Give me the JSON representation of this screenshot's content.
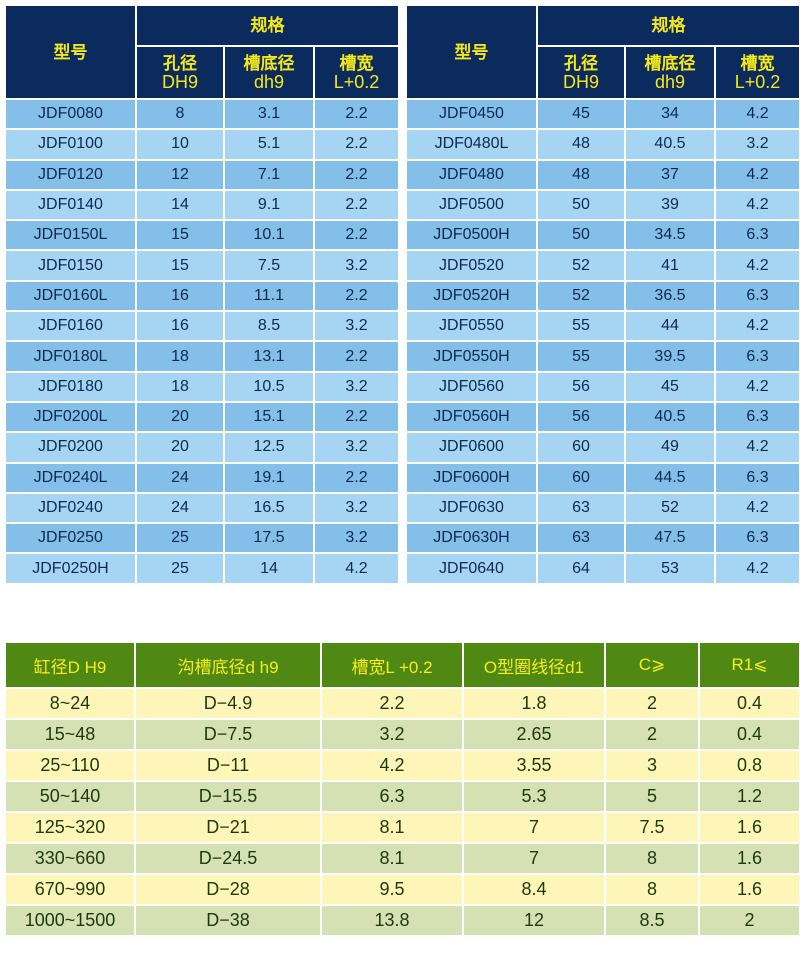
{
  "spec_header": {
    "model": "型号",
    "spec": "规格",
    "bore_cn": "孔径",
    "bore_en": "DH9",
    "groove_dia_cn": "槽底径",
    "groove_dia_en": "dh9",
    "groove_width_cn": "槽宽",
    "groove_width_en": "L+0.2"
  },
  "left_rows": [
    [
      "JDF0080",
      "8",
      "3.1",
      "2.2"
    ],
    [
      "JDF0100",
      "10",
      "5.1",
      "2.2"
    ],
    [
      "JDF0120",
      "12",
      "7.1",
      "2.2"
    ],
    [
      "JDF0140",
      "14",
      "9.1",
      "2.2"
    ],
    [
      "JDF0150L",
      "15",
      "10.1",
      "2.2"
    ],
    [
      "JDF0150",
      "15",
      "7.5",
      "3.2"
    ],
    [
      "JDF0160L",
      "16",
      "11.1",
      "2.2"
    ],
    [
      "JDF0160",
      "16",
      "8.5",
      "3.2"
    ],
    [
      "JDF0180L",
      "18",
      "13.1",
      "2.2"
    ],
    [
      "JDF0180",
      "18",
      "10.5",
      "3.2"
    ],
    [
      "JDF0200L",
      "20",
      "15.1",
      "2.2"
    ],
    [
      "JDF0200",
      "20",
      "12.5",
      "3.2"
    ],
    [
      "JDF0240L",
      "24",
      "19.1",
      "2.2"
    ],
    [
      "JDF0240",
      "24",
      "16.5",
      "3.2"
    ],
    [
      "JDF0250",
      "25",
      "17.5",
      "3.2"
    ],
    [
      "JDF0250H",
      "25",
      "14",
      "4.2"
    ]
  ],
  "right_rows": [
    [
      "JDF0450",
      "45",
      "34",
      "4.2"
    ],
    [
      "JDF0480L",
      "48",
      "40.5",
      "3.2"
    ],
    [
      "JDF0480",
      "48",
      "37",
      "4.2"
    ],
    [
      "JDF0500",
      "50",
      "39",
      "4.2"
    ],
    [
      "JDF0500H",
      "50",
      "34.5",
      "6.3"
    ],
    [
      "JDF0520",
      "52",
      "41",
      "4.2"
    ],
    [
      "JDF0520H",
      "52",
      "36.5",
      "6.3"
    ],
    [
      "JDF0550",
      "55",
      "44",
      "4.2"
    ],
    [
      "JDF0550H",
      "55",
      "39.5",
      "6.3"
    ],
    [
      "JDF0560",
      "56",
      "45",
      "4.2"
    ],
    [
      "JDF0560H",
      "56",
      "40.5",
      "6.3"
    ],
    [
      "JDF0600",
      "60",
      "49",
      "4.2"
    ],
    [
      "JDF0600H",
      "60",
      "44.5",
      "6.3"
    ],
    [
      "JDF0630",
      "63",
      "52",
      "4.2"
    ],
    [
      "JDF0630H",
      "63",
      "47.5",
      "6.3"
    ],
    [
      "JDF0640",
      "64",
      "53",
      "4.2"
    ]
  ],
  "groove_table": {
    "headers": [
      "缸径D H9",
      "沟槽底径d h9",
      "槽宽L +0.2",
      "O型圈线径d1",
      "C⩾",
      "R1⩽"
    ],
    "rows": [
      [
        "8~24",
        "D−4.9",
        "2.2",
        "1.8",
        "2",
        "0.4"
      ],
      [
        "15~48",
        "D−7.5",
        "3.2",
        "2.65",
        "2",
        "0.4"
      ],
      [
        "25~110",
        "D−11",
        "4.2",
        "3.55",
        "3",
        "0.8"
      ],
      [
        "50~140",
        "D−15.5",
        "6.3",
        "5.3",
        "5",
        "1.2"
      ],
      [
        "125~320",
        "D−21",
        "8.1",
        "7",
        "7.5",
        "1.6"
      ],
      [
        "330~660",
        "D−24.5",
        "8.1",
        "7",
        "8",
        "1.6"
      ],
      [
        "670~990",
        "D−28",
        "9.5",
        "8.4",
        "8",
        "1.6"
      ],
      [
        "1000~1500",
        "D−38",
        "13.8",
        "12",
        "8.5",
        "2"
      ]
    ]
  },
  "colors": {
    "header_navy": "#0b2a5d",
    "header_text": "#f5e81a",
    "row_blue_dark": "#83bfe9",
    "row_blue_light": "#a5d5f3",
    "header_green": "#4f8913",
    "row_yellow": "#fef6b9",
    "row_sage": "#d5e0b3"
  }
}
